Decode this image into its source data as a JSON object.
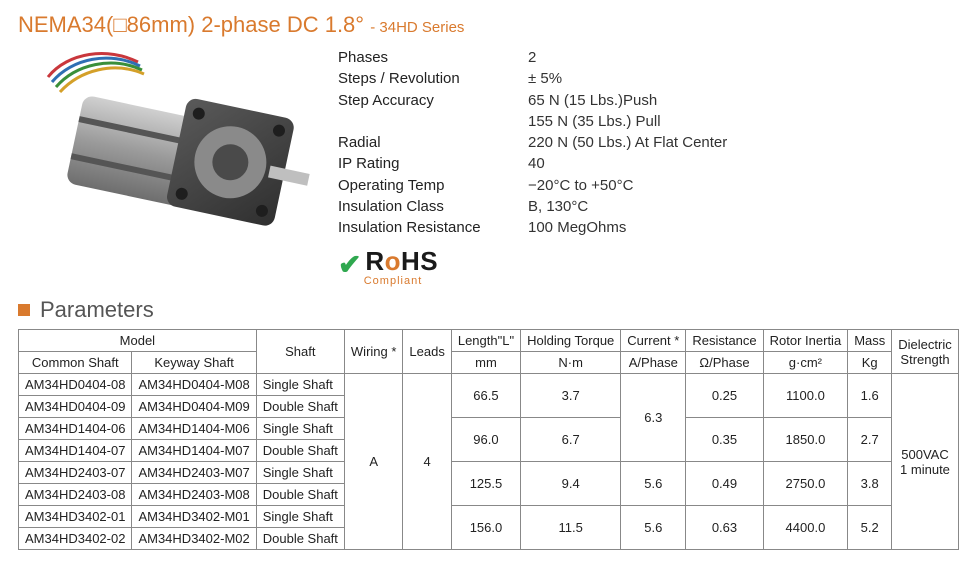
{
  "title_main": "NEMA34(□86mm) 2-phase DC 1.8°",
  "title_series": "- 34HD Series",
  "section_label": "Parameters",
  "specs": {
    "rows": [
      {
        "label": "Phases",
        "value": "2"
      },
      {
        "label": "Steps / Revolution",
        "value": "± 5%"
      },
      {
        "label": "Step Accuracy",
        "value": "65 N (15 Lbs.)Push"
      },
      {
        "label": "",
        "value": "155 N (35 Lbs.) Pull"
      },
      {
        "label": "Radial",
        "value": "220 N (50 Lbs.) At Flat Center"
      },
      {
        "label": "IP Rating",
        "value": "40"
      },
      {
        "label": "Operating Temp",
        "value": "−20°C to +50°C"
      },
      {
        "label": "Insulation Class",
        "value": "B,  130°C"
      },
      {
        "label": "Insulation Resistance",
        "value": "100 MegOhms"
      }
    ]
  },
  "rohs": {
    "word_pre": "R",
    "word_o": "o",
    "word_post": "HS",
    "sub": "Compliant"
  },
  "table": {
    "header1": {
      "model": "Model",
      "shaft": "Shaft",
      "wiring": "Wiring *",
      "leads": "Leads",
      "length": "Length\"L\"",
      "torque": "Holding Torque",
      "current": "Current *",
      "resistance": "Resistance",
      "inertia": "Rotor Inertia",
      "mass": "Mass",
      "dielectric": "Dielectric Strength"
    },
    "header2": {
      "common": "Common Shaft",
      "keyway": "Keyway Shaft",
      "length_u": "mm",
      "torque_u": "N·m",
      "current_u": "A/Phase",
      "resistance_u": "Ω/Phase",
      "inertia_u": "g·cm²",
      "mass_u": "Kg"
    },
    "wiring_value": "A",
    "leads_value": "4",
    "dielectric_value": "500VAC 1 minute",
    "groups": [
      {
        "rows": [
          {
            "common": "AM34HD0404-08",
            "keyway": "AM34HD0404-M08",
            "shaft": "Single Shaft"
          },
          {
            "common": "AM34HD0404-09",
            "keyway": "AM34HD0404-M09",
            "shaft": "Double Shaft"
          }
        ],
        "length": "66.5",
        "torque": "3.7",
        "current": "6.3",
        "current_rowspan": 4,
        "resistance": "0.25",
        "inertia": "1100.0",
        "mass": "1.6"
      },
      {
        "rows": [
          {
            "common": "AM34HD1404-06",
            "keyway": "AM34HD1404-M06",
            "shaft": "Single Shaft"
          },
          {
            "common": "AM34HD1404-07",
            "keyway": "AM34HD1404-M07",
            "shaft": "Double Shaft"
          }
        ],
        "length": "96.0",
        "torque": "6.7",
        "resistance": "0.35",
        "inertia": "1850.0",
        "mass": "2.7"
      },
      {
        "rows": [
          {
            "common": "AM34HD2403-07",
            "keyway": "AM34HD2403-M07",
            "shaft": "Single Shaft"
          },
          {
            "common": "AM34HD2403-08",
            "keyway": "AM34HD2403-M08",
            "shaft": "Double Shaft"
          }
        ],
        "length": "125.5",
        "torque": "9.4",
        "current": "5.6",
        "resistance": "0.49",
        "inertia": "2750.0",
        "mass": "3.8"
      },
      {
        "rows": [
          {
            "common": "AM34HD3402-01",
            "keyway": "AM34HD3402-M01",
            "shaft": "Single Shaft"
          },
          {
            "common": "AM34HD3402-02",
            "keyway": "AM34HD3402-M02",
            "shaft": "Double Shaft"
          }
        ],
        "length": "156.0",
        "torque": "11.5",
        "current": "5.6",
        "resistance": "0.63",
        "inertia": "4400.0",
        "mass": "5.2"
      }
    ]
  },
  "style": {
    "accent": "#d97a2e",
    "border": "#888888",
    "text": "#333333",
    "bg": "#ffffff",
    "title_fontsize": 22,
    "body_fontsize": 14,
    "table_fontsize": 13
  }
}
